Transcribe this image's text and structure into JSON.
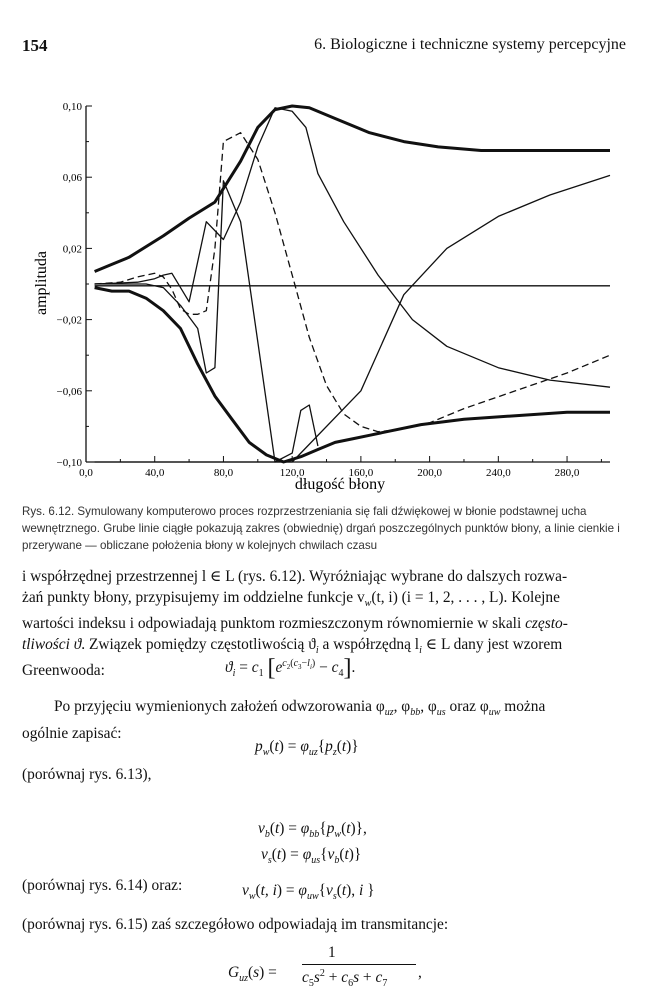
{
  "header": {
    "page_number": "154",
    "running_title": "6. Biologiczne i techniczne systemy percepcyjne"
  },
  "chart_data": {
    "type": "line",
    "ylabel": "amplituda",
    "xlabel": "długość błony",
    "x_ticks": [
      "0,0",
      "40,0",
      "80,0",
      "120,0",
      "160,0",
      "200,0",
      "240,0",
      "280,0"
    ],
    "y_ticks": [
      "0,10",
      "0,06",
      "0,02",
      "−0,02",
      "−0,06",
      "−0,10"
    ],
    "xlim": [
      0,
      305
    ],
    "ylim": [
      -0.1,
      0.1
    ],
    "grid": false,
    "series": [
      {
        "style": "thick",
        "x": [
          5,
          15,
          25,
          45,
          60,
          75,
          90,
          100,
          110,
          120,
          130,
          145,
          165,
          185,
          205,
          230,
          260,
          290,
          305
        ],
        "y": [
          0.007,
          0.011,
          0.015,
          0.027,
          0.037,
          0.046,
          0.069,
          0.088,
          0.098,
          0.1,
          0.099,
          0.093,
          0.085,
          0.08,
          0.077,
          0.075,
          0.075,
          0.075,
          0.075
        ]
      },
      {
        "style": "thick",
        "x": [
          5,
          15,
          25,
          35,
          45,
          55,
          65,
          75,
          85,
          95,
          105,
          115,
          125,
          135,
          145,
          155,
          165,
          175,
          195,
          220,
          250,
          280,
          305
        ],
        "y": [
          -0.002,
          -0.004,
          -0.004,
          -0.008,
          -0.015,
          -0.025,
          -0.045,
          -0.063,
          -0.076,
          -0.089,
          -0.096,
          -0.1,
          -0.097,
          -0.093,
          -0.089,
          -0.087,
          -0.085,
          -0.083,
          -0.079,
          -0.076,
          -0.074,
          -0.072,
          -0.072
        ]
      },
      {
        "style": "thin",
        "x": [
          5,
          35,
          45,
          55,
          65,
          70,
          75,
          80,
          90,
          110,
          120,
          125,
          130,
          135
        ],
        "y": [
          0,
          0,
          -0.002,
          -0.012,
          -0.025,
          -0.05,
          -0.047,
          0.058,
          0.035,
          -0.1,
          -0.095,
          -0.071,
          -0.068,
          -0.091
        ]
      },
      {
        "style": "thin",
        "x": [
          5,
          30,
          40,
          45,
          50,
          60,
          70,
          80,
          90,
          100,
          110,
          120,
          128,
          135,
          150,
          170,
          190,
          210,
          240,
          270,
          305
        ],
        "y": [
          0,
          0.001,
          0.003,
          0.005,
          0.006,
          -0.01,
          0.035,
          0.025,
          0.046,
          0.077,
          0.099,
          0.097,
          0.088,
          0.062,
          0.035,
          0.005,
          -0.02,
          -0.035,
          -0.047,
          -0.054,
          -0.058
        ]
      },
      {
        "style": "dashed",
        "x": [
          5,
          20,
          30,
          40,
          45,
          50,
          55,
          60,
          65,
          70,
          75,
          80,
          90,
          100,
          110,
          120,
          130,
          140,
          150,
          160,
          170,
          180,
          190,
          200,
          220,
          250,
          280,
          305
        ],
        "y": [
          0,
          0.001,
          0.004,
          0.006,
          0.004,
          -0.003,
          -0.014,
          -0.017,
          -0.017,
          -0.015,
          0.02,
          0.08,
          0.085,
          0.07,
          0.04,
          0.005,
          -0.03,
          -0.057,
          -0.073,
          -0.08,
          -0.083,
          -0.082,
          -0.08,
          -0.078,
          -0.07,
          -0.06,
          -0.05,
          -0.04
        ]
      },
      {
        "style": "thin",
        "x": [
          5,
          305
        ],
        "y": [
          -0.001,
          -0.001
        ]
      },
      {
        "style": "thin",
        "x": [
          5,
          40,
          80,
          120,
          160,
          185,
          210,
          240,
          270,
          305
        ],
        "y": [
          -0.1,
          -0.1,
          -0.1,
          -0.1,
          -0.06,
          -0.006,
          0.02,
          0.038,
          0.05,
          0.061
        ]
      }
    ]
  },
  "caption": "Rys. 6.12. Symulowany komputerowo proces rozprzestrzeniania się fali dźwiękowej w błonie podstawnej ucha wewnętrznego. Grube linie ciągłe pokazują zakres (obwiednię) drgań poszczególnych punktów błony, a linie cienkie i przerywane — obliczane położenia błony w kolejnych chwilach czasu",
  "body": {
    "p1_line1": "i współrzędnej przestrzennej l ∈ L (rys. 6.12). Wyróżniając wybrane do dalszych rozwa-",
    "p1_line2": "żań punkty błony, przypisujemy im oddzielne funkcje v",
    "p1_line2b": "(t, i) (i = 1, 2, . . . , L). Kolejne",
    "p1_line3": "wartości indeksu i odpowiadają punktom rozmieszczonym równomiernie w skali",
    "p1_line3_em": "często-",
    "p1_line4_em": "tliwości ϑ",
    "p1_line4": ". Związek pomiędzy częstotliwością ϑ",
    "p1_line4b": " a współrzędną l",
    "p1_line4c": " ∈ L dany jest wzorem",
    "p1_line5": "Greenwooda:",
    "p2_line1": "Po przyjęciu wymienionych założeń odwzorowania φ",
    "p2_line1b": ", φ",
    "p2_line1c": ", φ",
    "p2_line1d": " oraz φ",
    "p2_line1e": " można",
    "p2_line2": "ogólnie zapisać:",
    "ref1": "(porównaj rys. 6.13),",
    "ref2": "(porównaj rys. 6.14) oraz:",
    "ref3": "(porównaj rys. 6.15) zaś szczegółowo odpowiadają im transmitancje:",
    "eq_gamma_one": "1"
  }
}
